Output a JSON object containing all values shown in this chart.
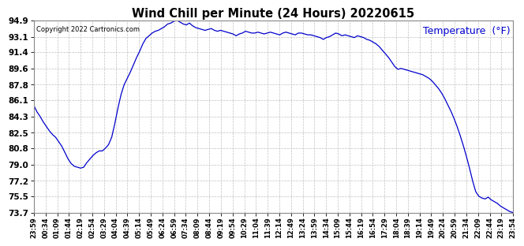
{
  "title": "Wind Chill per Minute (24 Hours) 20220615",
  "ylabel": "Temperature  (°F)",
  "copyright": "Copyright 2022 Cartronics.com",
  "line_color": "#0000cc",
  "ylabel_color": "#0000cc",
  "background_color": "#ffffff",
  "grid_color": "#b0b0b0",
  "ylim": [
    73.7,
    94.9
  ],
  "yticks": [
    73.7,
    75.5,
    77.2,
    79.0,
    80.8,
    82.5,
    84.3,
    86.1,
    87.8,
    89.6,
    91.4,
    93.1,
    94.9
  ],
  "x_labels": [
    "23:59",
    "00:34",
    "01:09",
    "01:44",
    "02:19",
    "02:54",
    "03:29",
    "04:04",
    "04:39",
    "05:14",
    "05:49",
    "06:24",
    "06:59",
    "07:34",
    "08:09",
    "08:44",
    "09:19",
    "09:54",
    "10:29",
    "11:04",
    "11:39",
    "12:14",
    "12:49",
    "13:24",
    "13:59",
    "14:34",
    "15:09",
    "15:44",
    "16:19",
    "16:54",
    "17:29",
    "18:04",
    "18:39",
    "19:14",
    "19:49",
    "20:24",
    "20:59",
    "21:34",
    "22:09",
    "22:44",
    "23:19",
    "23:54"
  ],
  "curve": [
    85.5,
    84.8,
    84.3,
    83.7,
    83.2,
    82.7,
    82.3,
    82.0,
    81.5,
    81.0,
    80.3,
    79.6,
    79.1,
    78.8,
    78.7,
    78.6,
    78.7,
    79.2,
    79.6,
    80.0,
    80.3,
    80.5,
    80.5,
    80.8,
    81.2,
    82.0,
    83.5,
    85.2,
    86.7,
    87.8,
    88.5,
    89.2,
    90.0,
    90.8,
    91.5,
    92.3,
    92.9,
    93.2,
    93.5,
    93.7,
    93.8,
    94.0,
    94.2,
    94.5,
    94.6,
    94.8,
    94.9,
    94.7,
    94.5,
    94.4,
    94.6,
    94.3,
    94.1,
    94.0,
    93.9,
    93.8,
    93.9,
    94.0,
    93.8,
    93.7,
    93.8,
    93.7,
    93.6,
    93.5,
    93.4,
    93.2,
    93.4,
    93.5,
    93.7,
    93.6,
    93.5,
    93.5,
    93.6,
    93.5,
    93.4,
    93.5,
    93.6,
    93.5,
    93.4,
    93.3,
    93.5,
    93.6,
    93.5,
    93.4,
    93.3,
    93.5,
    93.5,
    93.4,
    93.3,
    93.3,
    93.2,
    93.1,
    93.0,
    92.8,
    93.0,
    93.1,
    93.3,
    93.5,
    93.4,
    93.2,
    93.3,
    93.2,
    93.1,
    93.0,
    93.2,
    93.1,
    93.0,
    92.8,
    92.7,
    92.5,
    92.3,
    92.0,
    91.6,
    91.2,
    90.8,
    90.3,
    89.8,
    89.5,
    89.6,
    89.5,
    89.4,
    89.3,
    89.2,
    89.1,
    89.0,
    88.9,
    88.7,
    88.5,
    88.2,
    87.8,
    87.4,
    86.9,
    86.3,
    85.6,
    84.9,
    84.1,
    83.2,
    82.2,
    81.1,
    79.9,
    78.6,
    77.2,
    76.0,
    75.5,
    75.3,
    75.2,
    75.4,
    75.1,
    74.9,
    74.7,
    74.4,
    74.2,
    74.0,
    73.8,
    73.7
  ]
}
